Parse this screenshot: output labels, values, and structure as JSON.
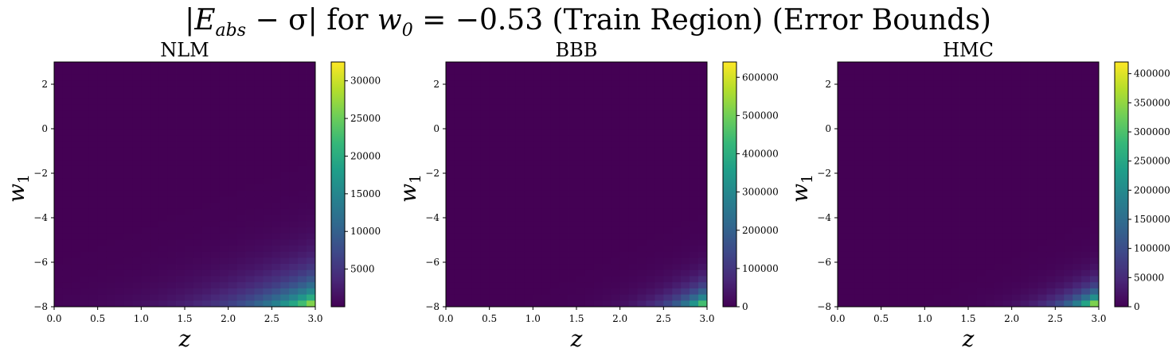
{
  "figure": {
    "title_parts": {
      "abs_open": "|",
      "E": "E",
      "E_sub": "abs",
      "minus_sigma": " − σ",
      "abs_close": "|",
      "for": " for ",
      "w": "w",
      "w_sub": "0",
      "eq": " = −0.53 (Train Region) (Error Bounds)"
    }
  },
  "colors": {
    "viridis": [
      "#440154",
      "#482878",
      "#3e4989",
      "#31688e",
      "#26828e",
      "#1f9e89",
      "#35b779",
      "#6ece58",
      "#b5de2b",
      "#fde725"
    ]
  },
  "chart_data": [
    {
      "type": "heatmap",
      "title": "NLM",
      "xlabel": "z",
      "ylabel": "w1",
      "ylabel_base": "w",
      "ylabel_sub": "1",
      "xlim": [
        0.0,
        3.0
      ],
      "ylim": [
        -8,
        3
      ],
      "xticks": [
        "0.0",
        "0.5",
        "1.0",
        "1.5",
        "2.0",
        "2.5",
        "3.0"
      ],
      "yticks": [
        "2",
        "0",
        "−2",
        "−4",
        "−6",
        "−8"
      ],
      "colorbar": {
        "min": 0,
        "max": 32500,
        "ticks": [
          5000,
          10000,
          15000,
          20000,
          25000,
          30000
        ],
        "tick_labels": [
          "5000",
          "10000",
          "15000",
          "20000",
          "25000",
          "30000"
        ]
      },
      "peak": {
        "x": 3.0,
        "y": -8,
        "value": 32500
      },
      "grid": false
    },
    {
      "type": "heatmap",
      "title": "BBB",
      "xlabel": "z",
      "ylabel": "w1",
      "ylabel_base": "w",
      "ylabel_sub": "1",
      "xlim": [
        0.0,
        3.0
      ],
      "ylim": [
        -8,
        3
      ],
      "xticks": [
        "0.0",
        "0.5",
        "1.0",
        "1.5",
        "2.0",
        "2.5",
        "3.0"
      ],
      "yticks": [
        "2",
        "0",
        "−2",
        "−4",
        "−6",
        "−8"
      ],
      "colorbar": {
        "min": 0,
        "max": 640000,
        "ticks": [
          0,
          100000,
          200000,
          300000,
          400000,
          500000,
          600000
        ],
        "tick_labels": [
          "0",
          "100000",
          "200000",
          "300000",
          "400000",
          "500000",
          "600000"
        ]
      },
      "peak": {
        "x": 3.0,
        "y": -8,
        "value": 640000
      },
      "grid": false
    },
    {
      "type": "heatmap",
      "title": "HMC",
      "xlabel": "z",
      "ylabel": "w1",
      "ylabel_base": "w",
      "ylabel_sub": "1",
      "xlim": [
        0.0,
        3.0
      ],
      "ylim": [
        -8,
        3
      ],
      "xticks": [
        "0.0",
        "0.5",
        "1.0",
        "1.5",
        "2.0",
        "2.5",
        "3.0"
      ],
      "yticks": [
        "2",
        "0",
        "−2",
        "−4",
        "−6",
        "−8"
      ],
      "colorbar": {
        "min": 0,
        "max": 420000,
        "ticks": [
          0,
          50000,
          100000,
          150000,
          200000,
          250000,
          300000,
          350000,
          400000
        ],
        "tick_labels": [
          "0",
          "50000",
          "100000",
          "150000",
          "200000",
          "250000",
          "300000",
          "350000",
          "400000"
        ]
      },
      "peak": {
        "x": 3.0,
        "y": -7.9,
        "value": 420000
      },
      "grid": false
    }
  ]
}
